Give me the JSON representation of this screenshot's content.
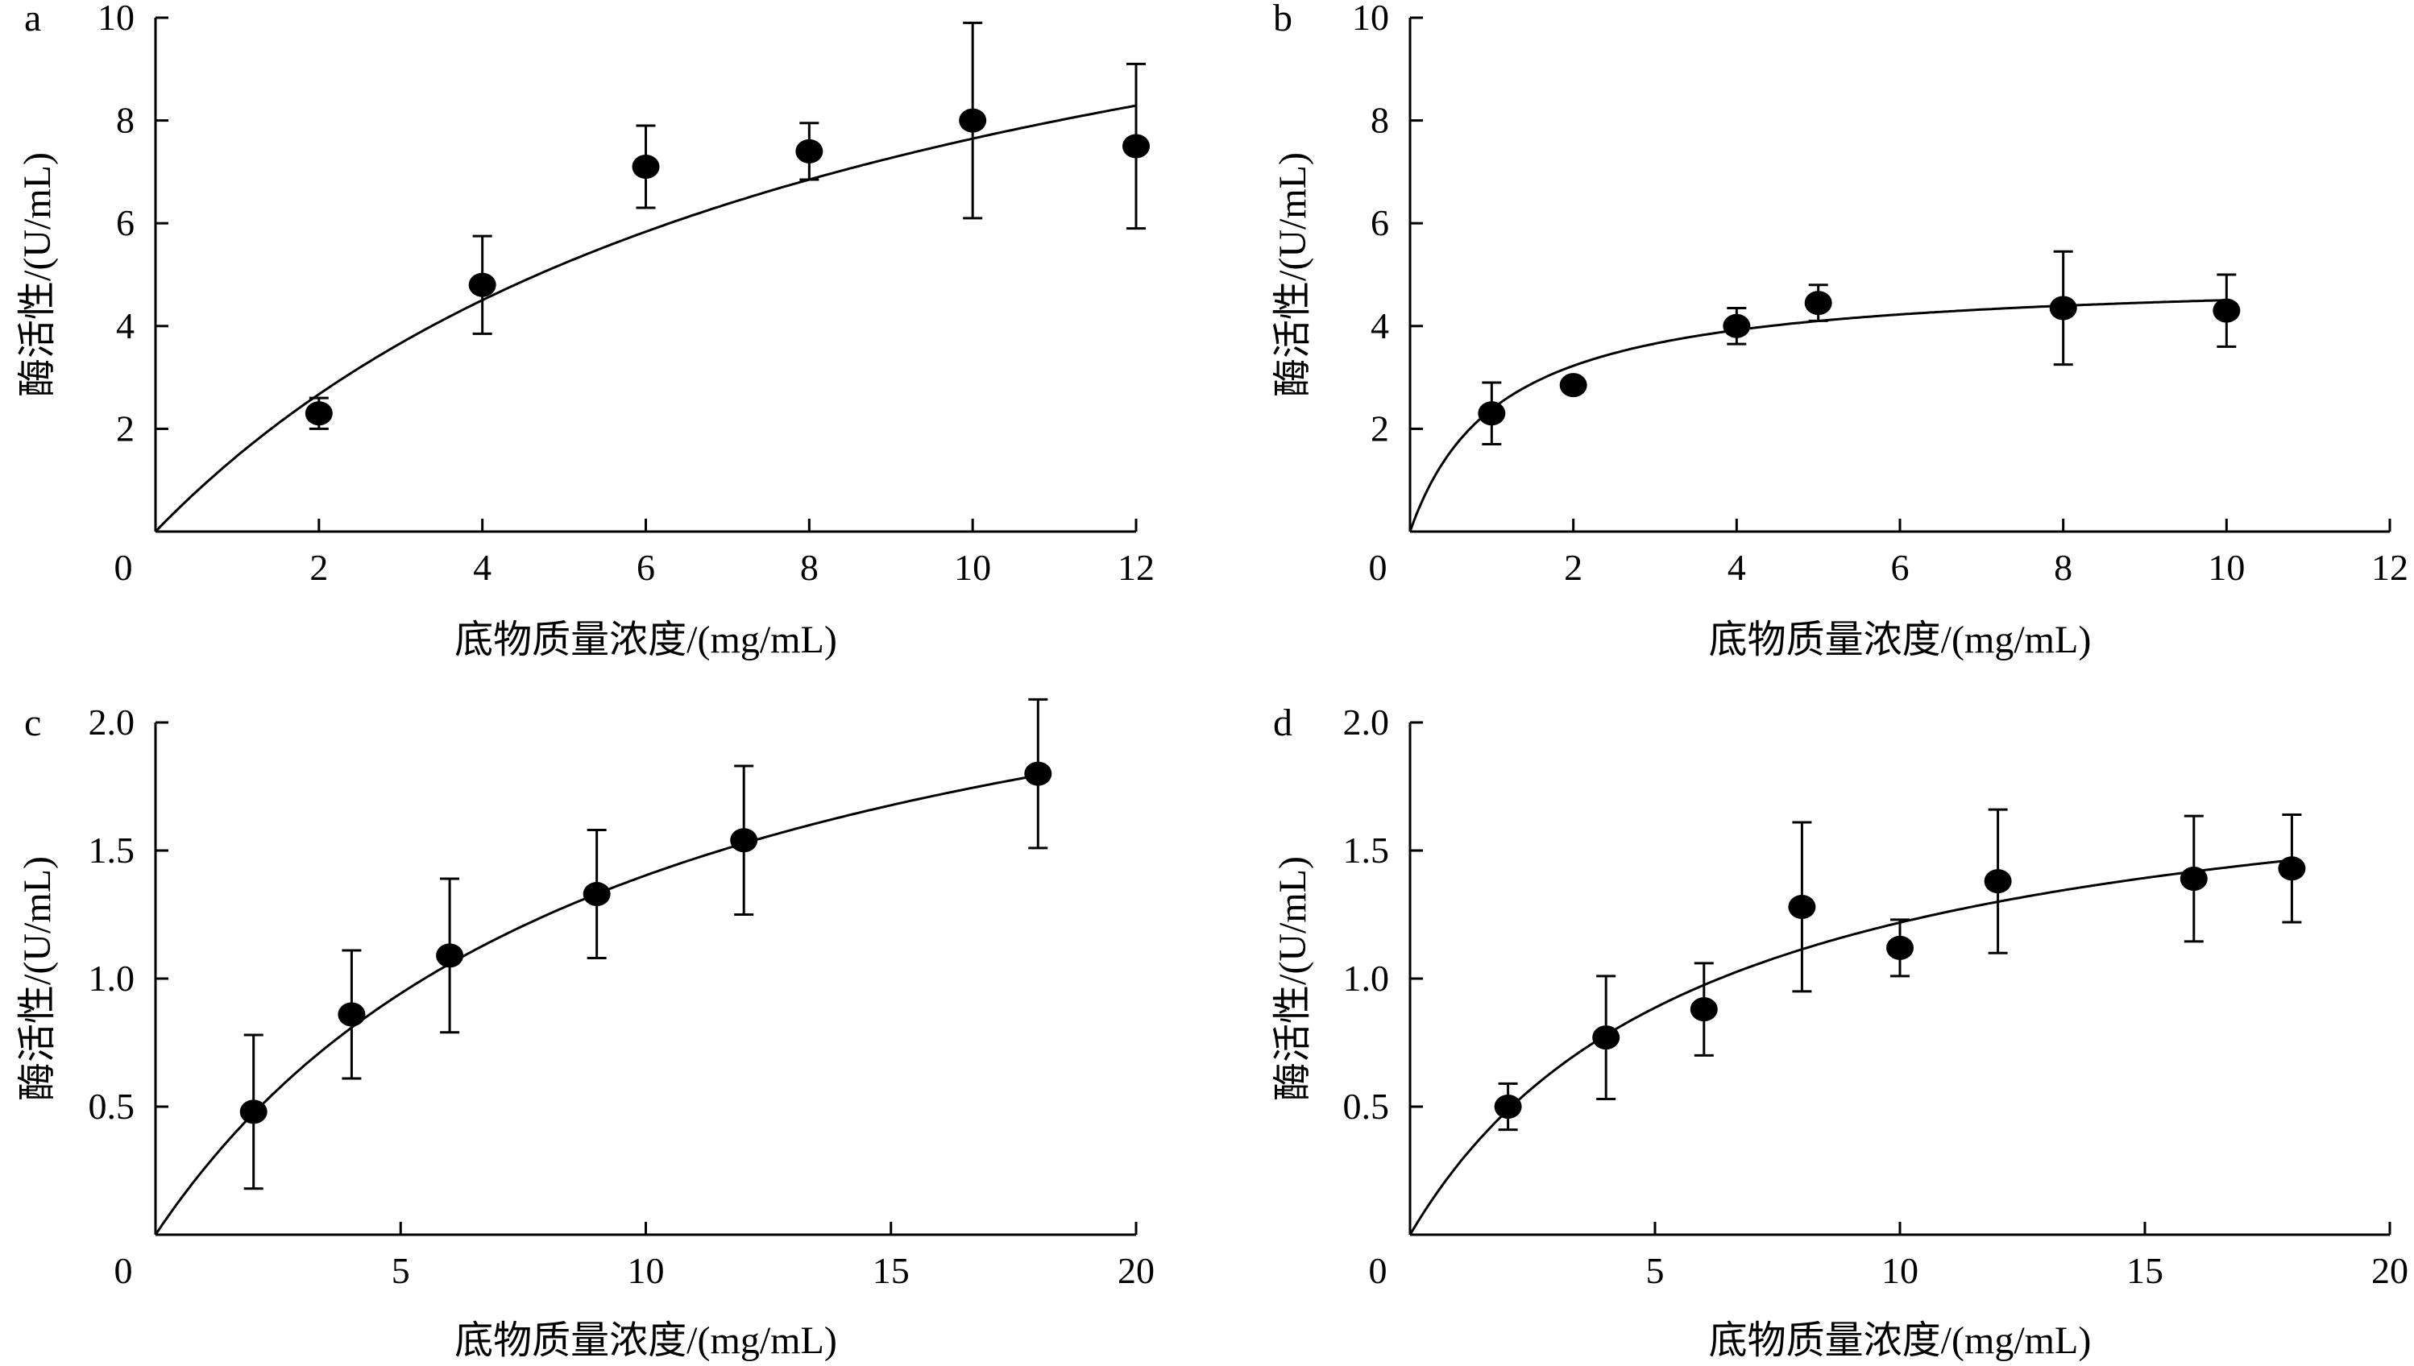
{
  "chart_data": [
    {
      "type": "scatter",
      "panel_label": "a",
      "xlabel": "底物质量浓度/(mg/mL)",
      "ylabel": "酶活性/(U/mL)",
      "xlim": [
        0,
        12
      ],
      "ylim": [
        0,
        10
      ],
      "x_ticks": [
        0,
        2,
        4,
        6,
        8,
        10,
        12
      ],
      "y_ticks": [
        2,
        4,
        6,
        8,
        10
      ],
      "x_tick_labels": [
        "0",
        "2",
        "4",
        "6",
        "8",
        "10",
        "12"
      ],
      "y_tick_labels": [
        "2",
        "4",
        "6",
        "8",
        "10"
      ],
      "grid": false,
      "series": [
        {
          "x": [
            2,
            4,
            6,
            8,
            10,
            12
          ],
          "y": [
            2.3,
            4.8,
            7.1,
            7.4,
            8.0,
            7.5
          ],
          "error": [
            0.3,
            0.95,
            0.8,
            0.55,
            1.9,
            1.6
          ]
        }
      ],
      "fit_curve": {
        "model": "michaelis-menten",
        "vmax": 14.3,
        "km": 8.7
      }
    },
    {
      "type": "scatter",
      "panel_label": "b",
      "xlabel": "底物质量浓度/(mg/mL)",
      "ylabel": "酶活性/(U/mL)",
      "xlim": [
        0,
        12
      ],
      "ylim": [
        0,
        10
      ],
      "x_ticks": [
        0,
        2,
        4,
        6,
        8,
        10,
        12
      ],
      "y_ticks": [
        2,
        4,
        6,
        8,
        10
      ],
      "x_tick_labels": [
        "0",
        "2",
        "4",
        "6",
        "8",
        "10",
        "12"
      ],
      "y_tick_labels": [
        "2",
        "4",
        "6",
        "8",
        "10"
      ],
      "grid": false,
      "series": [
        {
          "x": [
            1,
            2,
            4,
            5,
            8,
            10
          ],
          "y": [
            2.3,
            2.85,
            4.0,
            4.45,
            4.35,
            4.3
          ],
          "error": [
            0.6,
            0.0,
            0.35,
            0.35,
            1.1,
            0.7
          ]
        }
      ],
      "fit_curve": {
        "model": "michaelis-menten",
        "vmax": 5.0,
        "km": 1.1
      }
    },
    {
      "type": "scatter",
      "panel_label": "c",
      "xlabel": "底物质量浓度/(mg/mL)",
      "ylabel": "酶活性/(U/mL)",
      "xlim": [
        0,
        20
      ],
      "ylim": [
        0,
        2.0
      ],
      "x_ticks": [
        0,
        5,
        10,
        15,
        20
      ],
      "y_ticks": [
        0.5,
        1.0,
        1.5,
        2.0
      ],
      "x_tick_labels": [
        "0",
        "5",
        "10",
        "15",
        "20"
      ],
      "y_tick_labels": [
        "0.5",
        "1.0",
        "1.5",
        "2.0"
      ],
      "grid": false,
      "series": [
        {
          "x": [
            2,
            4,
            6,
            9,
            12,
            18
          ],
          "y": [
            0.48,
            0.86,
            1.09,
            1.33,
            1.54,
            1.8
          ],
          "error": [
            0.3,
            0.25,
            0.3,
            0.25,
            0.29,
            0.29
          ]
        }
      ],
      "fit_curve": {
        "model": "michaelis-menten",
        "vmax": 2.75,
        "km": 9.6
      }
    },
    {
      "type": "scatter",
      "panel_label": "d",
      "xlabel": "底物质量浓度/(mg/mL)",
      "ylabel": "酶活性/(U/mL)",
      "xlim": [
        0,
        20
      ],
      "ylim": [
        0,
        2.0
      ],
      "x_ticks": [
        0,
        5,
        10,
        15,
        20
      ],
      "y_ticks": [
        0.5,
        1.0,
        1.5,
        2.0
      ],
      "x_tick_labels": [
        "0",
        "5",
        "10",
        "15",
        "20"
      ],
      "y_tick_labels": [
        "0.5",
        "1.0",
        "1.5",
        "2.0"
      ],
      "grid": false,
      "series": [
        {
          "x": [
            2,
            4,
            6,
            8,
            10,
            12,
            16,
            18
          ],
          "y": [
            0.5,
            0.77,
            0.88,
            1.28,
            1.12,
            1.38,
            1.39,
            1.43
          ],
          "error": [
            0.09,
            0.24,
            0.18,
            0.33,
            0.11,
            0.28,
            0.245,
            0.21
          ]
        }
      ],
      "fit_curve": {
        "model": "michaelis-menten",
        "vmax": 1.95,
        "km": 6.0
      }
    }
  ]
}
